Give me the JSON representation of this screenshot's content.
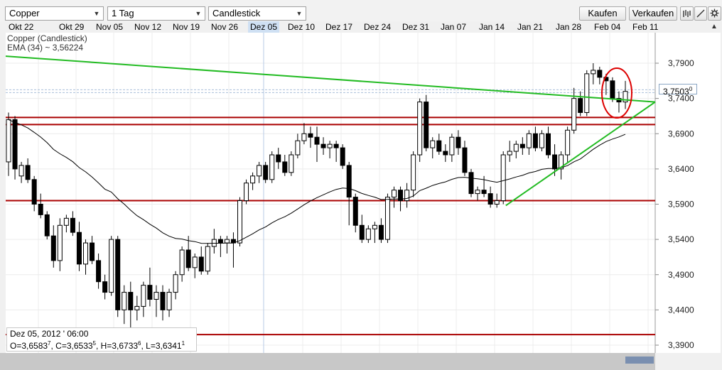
{
  "toolbar": {
    "symbol": "Copper",
    "interval": "1 Tag",
    "chart_type": "Candlestick",
    "buy_label": "Kaufen",
    "sell_label": "Verkaufen",
    "icons": [
      "bars-icon",
      "draw-icon",
      "settings-icon"
    ]
  },
  "date_axis": {
    "labels": [
      "Okt 22",
      "Okt 29",
      "Nov 05",
      "Nov 12",
      "Nov 19",
      "Nov 26",
      "Dez 05",
      "Dez 10",
      "Dez 17",
      "Dez 24",
      "Dez 31",
      "Jan 07",
      "Jan 14",
      "Jan 21",
      "Jan 28",
      "Feb 04",
      "Feb 11"
    ],
    "active": "Dez 05"
  },
  "legend": {
    "series": "Copper (Candlestick)",
    "ema": "EMA (34) ~ 3,56224"
  },
  "crosshair": {
    "date": "Dez 05, 2012 ' 06:00",
    "open_label": "O=3,6583",
    "open_sup": "7",
    "close_label": ", C=3,6533",
    "close_sup": "5",
    "high_label": ", H=3,6733",
    "high_sup": "6",
    "low_label": ", L=3,6341",
    "low_sup": "1"
  },
  "price_tag": {
    "value": "3,7503",
    "sup": "0"
  },
  "colors": {
    "up": "#ffffff",
    "down": "#000000",
    "trendline": "#22bb22",
    "support": "#aa0000",
    "ema": "#000000",
    "circle": "#dd0000"
  },
  "chart_data": {
    "type": "candlestick",
    "title": "",
    "xlabel": "",
    "ylabel": "",
    "ylim": [
      3.375,
      3.82
    ],
    "y_ticks": [
      3.79,
      3.74,
      3.69,
      3.64,
      3.59,
      3.54,
      3.49,
      3.44,
      3.39
    ],
    "y_tick_labels": [
      "3,7900",
      "3,7400",
      "3,6900",
      "3,6400",
      "3,5900",
      "3,5400",
      "3,4900",
      "3,4400",
      "3,3900"
    ],
    "grid": true,
    "horizontal_lines": [
      3.713,
      3.703,
      3.595,
      3.405
    ],
    "trendlines": [
      {
        "name": "resistance",
        "from": {
          "x": 0,
          "y": 3.8
        },
        "to": {
          "x": 100,
          "y": 3.735
        }
      },
      {
        "name": "support",
        "from": {
          "x": 77,
          "y": 3.588
        },
        "to": {
          "x": 100,
          "y": 3.735
        }
      }
    ],
    "ema_period": 34,
    "current": 3.7503,
    "candles": [
      {
        "o": 3.65,
        "h": 3.72,
        "l": 3.63,
        "c": 3.71
      },
      {
        "o": 3.71,
        "h": 3.715,
        "l": 3.625,
        "c": 3.64
      },
      {
        "o": 3.63,
        "h": 3.65,
        "l": 3.62,
        "c": 3.645
      },
      {
        "o": 3.645,
        "h": 3.655,
        "l": 3.62,
        "c": 3.625
      },
      {
        "o": 3.625,
        "h": 3.63,
        "l": 3.58,
        "c": 3.59
      },
      {
        "o": 3.59,
        "h": 3.605,
        "l": 3.57,
        "c": 3.575
      },
      {
        "o": 3.575,
        "h": 3.58,
        "l": 3.54,
        "c": 3.545
      },
      {
        "o": 3.545,
        "h": 3.56,
        "l": 3.5,
        "c": 3.51
      },
      {
        "o": 3.51,
        "h": 3.57,
        "l": 3.495,
        "c": 3.56
      },
      {
        "o": 3.56,
        "h": 3.575,
        "l": 3.55,
        "c": 3.57
      },
      {
        "o": 3.57,
        "h": 3.58,
        "l": 3.545,
        "c": 3.55
      },
      {
        "o": 3.55,
        "h": 3.565,
        "l": 3.495,
        "c": 3.505
      },
      {
        "o": 3.505,
        "h": 3.54,
        "l": 3.49,
        "c": 3.535
      },
      {
        "o": 3.535,
        "h": 3.545,
        "l": 3.505,
        "c": 3.51
      },
      {
        "o": 3.51,
        "h": 3.52,
        "l": 3.47,
        "c": 3.48
      },
      {
        "o": 3.48,
        "h": 3.49,
        "l": 3.455,
        "c": 3.465
      },
      {
        "o": 3.465,
        "h": 3.545,
        "l": 3.46,
        "c": 3.54
      },
      {
        "o": 3.54,
        "h": 3.545,
        "l": 3.43,
        "c": 3.44
      },
      {
        "o": 3.44,
        "h": 3.475,
        "l": 3.42,
        "c": 3.465
      },
      {
        "o": 3.465,
        "h": 3.48,
        "l": 3.41,
        "c": 3.44
      },
      {
        "o": 3.44,
        "h": 3.46,
        "l": 3.425,
        "c": 3.445
      },
      {
        "o": 3.445,
        "h": 3.48,
        "l": 3.43,
        "c": 3.475
      },
      {
        "o": 3.475,
        "h": 3.5,
        "l": 3.445,
        "c": 3.455
      },
      {
        "o": 3.455,
        "h": 3.475,
        "l": 3.43,
        "c": 3.465
      },
      {
        "o": 3.465,
        "h": 3.475,
        "l": 3.425,
        "c": 3.44
      },
      {
        "o": 3.44,
        "h": 3.47,
        "l": 3.43,
        "c": 3.465
      },
      {
        "o": 3.465,
        "h": 3.495,
        "l": 3.455,
        "c": 3.49
      },
      {
        "o": 3.49,
        "h": 3.53,
        "l": 3.48,
        "c": 3.525
      },
      {
        "o": 3.525,
        "h": 3.545,
        "l": 3.495,
        "c": 3.5
      },
      {
        "o": 3.5,
        "h": 3.52,
        "l": 3.485,
        "c": 3.515
      },
      {
        "o": 3.515,
        "h": 3.53,
        "l": 3.49,
        "c": 3.495
      },
      {
        "o": 3.495,
        "h": 3.535,
        "l": 3.49,
        "c": 3.53
      },
      {
        "o": 3.53,
        "h": 3.555,
        "l": 3.52,
        "c": 3.54
      },
      {
        "o": 3.54,
        "h": 3.545,
        "l": 3.515,
        "c": 3.535
      },
      {
        "o": 3.535,
        "h": 3.545,
        "l": 3.52,
        "c": 3.54
      },
      {
        "o": 3.54,
        "h": 3.55,
        "l": 3.5,
        "c": 3.535
      },
      {
        "o": 3.535,
        "h": 3.6,
        "l": 3.53,
        "c": 3.595
      },
      {
        "o": 3.595,
        "h": 3.625,
        "l": 3.59,
        "c": 3.62
      },
      {
        "o": 3.62,
        "h": 3.635,
        "l": 3.61,
        "c": 3.63
      },
      {
        "o": 3.63,
        "h": 3.65,
        "l": 3.62,
        "c": 3.645
      },
      {
        "o": 3.645,
        "h": 3.65,
        "l": 3.62,
        "c": 3.625
      },
      {
        "o": 3.625,
        "h": 3.665,
        "l": 3.62,
        "c": 3.66
      },
      {
        "o": 3.66,
        "h": 3.67,
        "l": 3.64,
        "c": 3.65
      },
      {
        "o": 3.65,
        "h": 3.66,
        "l": 3.63,
        "c": 3.635
      },
      {
        "o": 3.635,
        "h": 3.665,
        "l": 3.63,
        "c": 3.66
      },
      {
        "o": 3.66,
        "h": 3.69,
        "l": 3.655,
        "c": 3.68
      },
      {
        "o": 3.68,
        "h": 3.705,
        "l": 3.675,
        "c": 3.69
      },
      {
        "o": 3.69,
        "h": 3.7,
        "l": 3.67,
        "c": 3.685
      },
      {
        "o": 3.685,
        "h": 3.7,
        "l": 3.65,
        "c": 3.675
      },
      {
        "o": 3.675,
        "h": 3.685,
        "l": 3.66,
        "c": 3.67
      },
      {
        "o": 3.67,
        "h": 3.68,
        "l": 3.655,
        "c": 3.675
      },
      {
        "o": 3.675,
        "h": 3.68,
        "l": 3.65,
        "c": 3.67
      },
      {
        "o": 3.67,
        "h": 3.675,
        "l": 3.64,
        "c": 3.645
      },
      {
        "o": 3.645,
        "h": 3.65,
        "l": 3.56,
        "c": 3.6
      },
      {
        "o": 3.6,
        "h": 3.605,
        "l": 3.55,
        "c": 3.56
      },
      {
        "o": 3.56,
        "h": 3.575,
        "l": 3.535,
        "c": 3.54
      },
      {
        "o": 3.54,
        "h": 3.56,
        "l": 3.535,
        "c": 3.555
      },
      {
        "o": 3.555,
        "h": 3.565,
        "l": 3.535,
        "c": 3.56
      },
      {
        "o": 3.56,
        "h": 3.57,
        "l": 3.535,
        "c": 3.54
      },
      {
        "o": 3.54,
        "h": 3.605,
        "l": 3.535,
        "c": 3.6
      },
      {
        "o": 3.6,
        "h": 3.615,
        "l": 3.585,
        "c": 3.61
      },
      {
        "o": 3.61,
        "h": 3.615,
        "l": 3.58,
        "c": 3.595
      },
      {
        "o": 3.595,
        "h": 3.62,
        "l": 3.585,
        "c": 3.61
      },
      {
        "o": 3.61,
        "h": 3.665,
        "l": 3.6,
        "c": 3.66
      },
      {
        "o": 3.66,
        "h": 3.74,
        "l": 3.65,
        "c": 3.735
      },
      {
        "o": 3.735,
        "h": 3.745,
        "l": 3.665,
        "c": 3.67
      },
      {
        "o": 3.67,
        "h": 3.685,
        "l": 3.655,
        "c": 3.68
      },
      {
        "o": 3.68,
        "h": 3.69,
        "l": 3.66,
        "c": 3.665
      },
      {
        "o": 3.665,
        "h": 3.675,
        "l": 3.65,
        "c": 3.66
      },
      {
        "o": 3.66,
        "h": 3.69,
        "l": 3.65,
        "c": 3.685
      },
      {
        "o": 3.685,
        "h": 3.695,
        "l": 3.66,
        "c": 3.67
      },
      {
        "o": 3.67,
        "h": 3.68,
        "l": 3.63,
        "c": 3.635
      },
      {
        "o": 3.635,
        "h": 3.64,
        "l": 3.6,
        "c": 3.605
      },
      {
        "o": 3.605,
        "h": 3.615,
        "l": 3.595,
        "c": 3.61
      },
      {
        "o": 3.61,
        "h": 3.63,
        "l": 3.6,
        "c": 3.605
      },
      {
        "o": 3.605,
        "h": 3.615,
        "l": 3.585,
        "c": 3.59
      },
      {
        "o": 3.59,
        "h": 3.605,
        "l": 3.585,
        "c": 3.595
      },
      {
        "o": 3.595,
        "h": 3.665,
        "l": 3.59,
        "c": 3.66
      },
      {
        "o": 3.66,
        "h": 3.68,
        "l": 3.65,
        "c": 3.665
      },
      {
        "o": 3.665,
        "h": 3.68,
        "l": 3.655,
        "c": 3.675
      },
      {
        "o": 3.675,
        "h": 3.685,
        "l": 3.66,
        "c": 3.67
      },
      {
        "o": 3.67,
        "h": 3.695,
        "l": 3.66,
        "c": 3.69
      },
      {
        "o": 3.69,
        "h": 3.7,
        "l": 3.665,
        "c": 3.67
      },
      {
        "o": 3.67,
        "h": 3.695,
        "l": 3.665,
        "c": 3.69
      },
      {
        "o": 3.69,
        "h": 3.7,
        "l": 3.655,
        "c": 3.66
      },
      {
        "o": 3.66,
        "h": 3.675,
        "l": 3.63,
        "c": 3.64
      },
      {
        "o": 3.64,
        "h": 3.665,
        "l": 3.625,
        "c": 3.66
      },
      {
        "o": 3.66,
        "h": 3.7,
        "l": 3.65,
        "c": 3.695
      },
      {
        "o": 3.695,
        "h": 3.755,
        "l": 3.69,
        "c": 3.74
      },
      {
        "o": 3.74,
        "h": 3.75,
        "l": 3.715,
        "c": 3.72
      },
      {
        "o": 3.72,
        "h": 3.78,
        "l": 3.715,
        "c": 3.775
      },
      {
        "o": 3.775,
        "h": 3.79,
        "l": 3.76,
        "c": 3.78
      },
      {
        "o": 3.78,
        "h": 3.785,
        "l": 3.76,
        "c": 3.77
      },
      {
        "o": 3.77,
        "h": 3.775,
        "l": 3.745,
        "c": 3.765
      },
      {
        "o": 3.765,
        "h": 3.77,
        "l": 3.735,
        "c": 3.74
      },
      {
        "o": 3.74,
        "h": 3.75,
        "l": 3.72,
        "c": 3.735
      },
      {
        "o": 3.735,
        "h": 3.765,
        "l": 3.725,
        "c": 3.75
      }
    ]
  }
}
